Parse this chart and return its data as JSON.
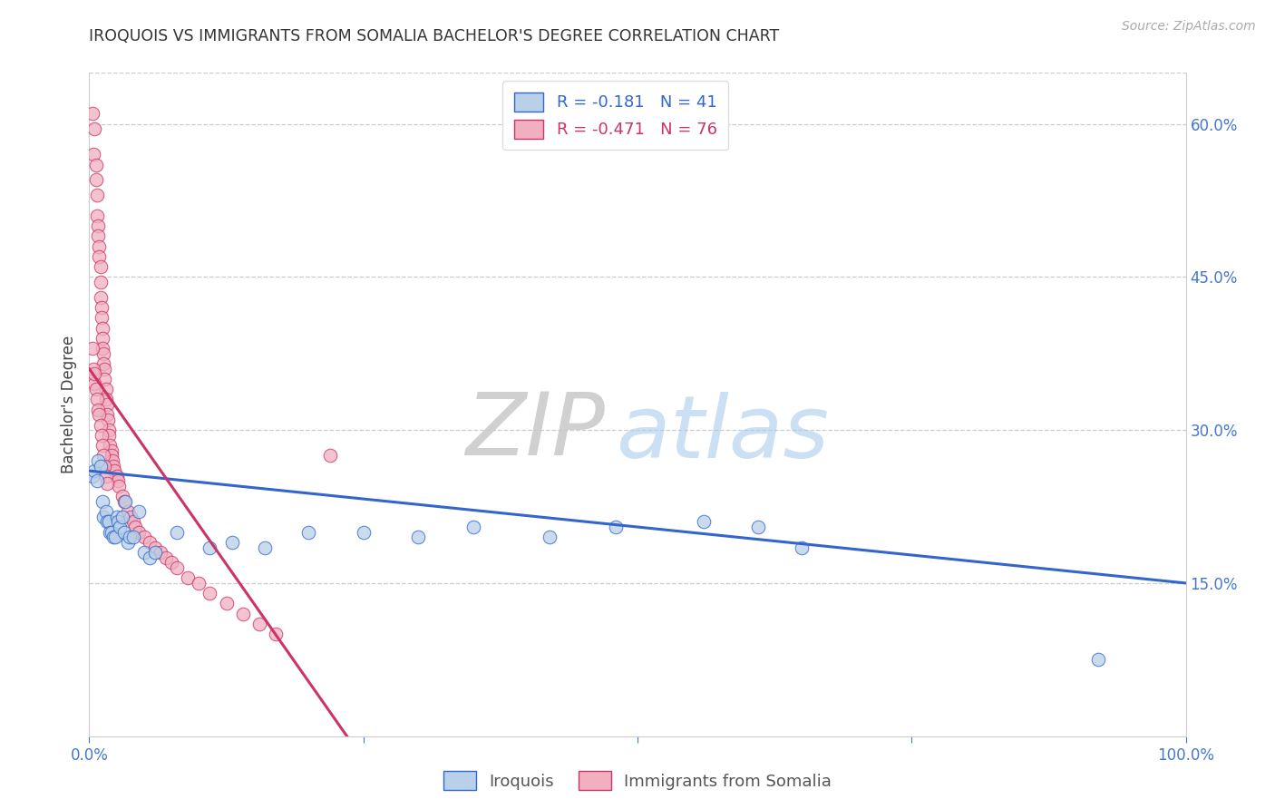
{
  "title": "IROQUOIS VS IMMIGRANTS FROM SOMALIA BACHELOR'S DEGREE CORRELATION CHART",
  "source": "Source: ZipAtlas.com",
  "ylabel": "Bachelor's Degree",
  "watermark_zip": "ZIP",
  "watermark_atlas": "atlas",
  "legend_iroquois": "Iroquois",
  "legend_somalia": "Immigrants from Somalia",
  "r_iroquois": -0.181,
  "n_iroquois": 41,
  "r_somalia": -0.471,
  "n_somalia": 76,
  "color_iroquois": "#b8d0e8",
  "color_somalia": "#f0b0c0",
  "line_color_iroquois": "#3366cc",
  "line_color_somalia": "#cc3366",
  "xlim": [
    0,
    1.0
  ],
  "ylim": [
    0,
    0.65
  ],
  "yticks_right": [
    0.15,
    0.3,
    0.45,
    0.6
  ],
  "ytick_labels_right": [
    "15.0%",
    "30.0%",
    "45.0%",
    "60.0%"
  ],
  "iroquois_x": [
    0.003,
    0.005,
    0.007,
    0.008,
    0.01,
    0.012,
    0.013,
    0.015,
    0.016,
    0.018,
    0.019,
    0.02,
    0.022,
    0.024,
    0.025,
    0.026,
    0.028,
    0.03,
    0.032,
    0.033,
    0.035,
    0.037,
    0.04,
    0.045,
    0.05,
    0.055,
    0.06,
    0.08,
    0.11,
    0.13,
    0.16,
    0.2,
    0.25,
    0.3,
    0.35,
    0.42,
    0.48,
    0.56,
    0.61,
    0.65,
    0.92
  ],
  "iroquois_y": [
    0.255,
    0.26,
    0.25,
    0.27,
    0.265,
    0.23,
    0.215,
    0.22,
    0.21,
    0.21,
    0.2,
    0.2,
    0.195,
    0.195,
    0.215,
    0.21,
    0.205,
    0.215,
    0.2,
    0.23,
    0.19,
    0.195,
    0.195,
    0.22,
    0.18,
    0.175,
    0.18,
    0.2,
    0.185,
    0.19,
    0.185,
    0.2,
    0.2,
    0.195,
    0.205,
    0.195,
    0.205,
    0.21,
    0.205,
    0.185,
    0.075
  ],
  "somalia_x": [
    0.003,
    0.004,
    0.005,
    0.006,
    0.006,
    0.007,
    0.007,
    0.008,
    0.008,
    0.009,
    0.009,
    0.01,
    0.01,
    0.01,
    0.011,
    0.011,
    0.012,
    0.012,
    0.012,
    0.013,
    0.013,
    0.014,
    0.014,
    0.015,
    0.015,
    0.016,
    0.016,
    0.017,
    0.018,
    0.018,
    0.019,
    0.02,
    0.02,
    0.021,
    0.022,
    0.023,
    0.025,
    0.026,
    0.027,
    0.03,
    0.032,
    0.035,
    0.038,
    0.04,
    0.042,
    0.045,
    0.05,
    0.055,
    0.06,
    0.065,
    0.07,
    0.075,
    0.08,
    0.09,
    0.1,
    0.11,
    0.125,
    0.14,
    0.155,
    0.17,
    0.003,
    0.004,
    0.005,
    0.005,
    0.006,
    0.007,
    0.008,
    0.009,
    0.01,
    0.011,
    0.012,
    0.013,
    0.014,
    0.015,
    0.016,
    0.22
  ],
  "somalia_y": [
    0.61,
    0.57,
    0.595,
    0.56,
    0.545,
    0.53,
    0.51,
    0.5,
    0.49,
    0.48,
    0.47,
    0.46,
    0.445,
    0.43,
    0.42,
    0.41,
    0.4,
    0.39,
    0.38,
    0.375,
    0.365,
    0.36,
    0.35,
    0.34,
    0.33,
    0.325,
    0.315,
    0.31,
    0.3,
    0.295,
    0.285,
    0.28,
    0.275,
    0.27,
    0.265,
    0.26,
    0.255,
    0.25,
    0.245,
    0.235,
    0.23,
    0.22,
    0.215,
    0.21,
    0.205,
    0.2,
    0.195,
    0.19,
    0.185,
    0.18,
    0.175,
    0.17,
    0.165,
    0.155,
    0.15,
    0.14,
    0.13,
    0.12,
    0.11,
    0.1,
    0.38,
    0.36,
    0.345,
    0.355,
    0.34,
    0.33,
    0.32,
    0.315,
    0.305,
    0.295,
    0.285,
    0.275,
    0.265,
    0.255,
    0.248,
    0.275
  ],
  "iroquois_line_x": [
    0.0,
    1.0
  ],
  "iroquois_line_y": [
    0.26,
    0.15
  ],
  "somalia_line_x": [
    0.0,
    0.235
  ],
  "somalia_line_y": [
    0.36,
    0.0
  ]
}
